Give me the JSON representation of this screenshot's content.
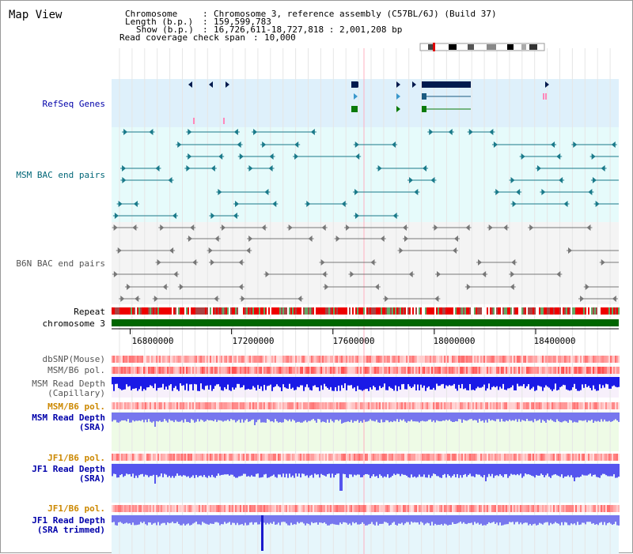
{
  "title": "Map View",
  "info": {
    "chromosome_label": "Chromosome",
    "chromosome_value": "Chromosome 3, reference assembly (C57BL/6J) (Build 37)",
    "length_label": "Length (b.p.)",
    "length_value": "159,599,783",
    "show_label": "Show (b.p.)",
    "show_value": "16,726,611-18,727,818 : 2,001,208 bp",
    "span_label": "Read coverage check span",
    "span_value": "10,000"
  },
  "tracks": {
    "refseq": "RefSeq Genes",
    "msm_bac": "MSM BAC end pairs",
    "b6n_bac": "B6N BAC end pairs",
    "repeat": "Repeat",
    "chromosome": "chromosome 3",
    "dbsnp": "dbSNP(Mouse)",
    "msm_b6_pol_1": "MSM/B6 pol.",
    "msm_depth_cap_1": "MSM Read Depth",
    "msm_depth_cap_2": "(Capillary)",
    "msm_b6_pol_2": "MSM/B6 pol.",
    "msm_depth_sra_1": "MSM Read Depth",
    "msm_depth_sra_2": "(SRA)",
    "jf1_b6_pol_1": "JF1/B6 pol.",
    "jf1_depth_sra_1": "JF1 Read Depth",
    "jf1_depth_sra_2": "(SRA)",
    "jf1_b6_pol_2": "JF1/B6 pol.",
    "jf1_depth_trim_1": "JF1 Read Depth",
    "jf1_depth_trim_2": "(SRA trimmed)"
  },
  "axis": {
    "ticks": [
      "16800000",
      "17200000",
      "17600000",
      "18000000",
      "18400000"
    ],
    "tick_values": [
      16800000,
      17200000,
      17600000,
      18000000,
      18400000
    ],
    "range": [
      16726611,
      18727818
    ]
  },
  "colors": {
    "refseq_bg": "#def0fb",
    "msm_bg": "#e6fbfb",
    "b6n_bg": "#f4f4f4",
    "chromosome": "#006600",
    "teal": "#1a7a8a",
    "gray_feat": "#777777",
    "navy": "#001a4d",
    "depth_blue": "#1a1ae6",
    "depth_light": "#7777ee",
    "label_blue": "#0000aa",
    "label_teal": "#006677",
    "label_orange": "#cc8800",
    "label_gray": "#555555"
  }
}
